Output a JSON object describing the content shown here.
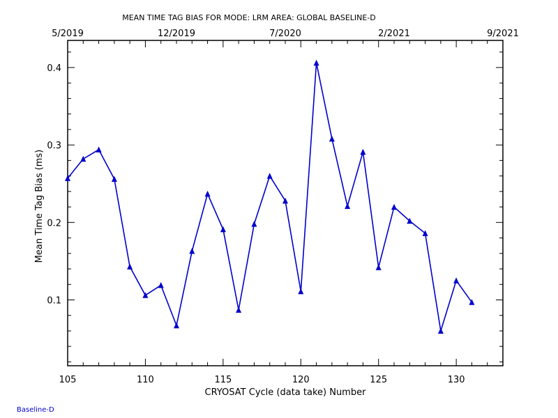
{
  "chart_data": {
    "type": "line",
    "title": "MEAN TIME TAG BIAS FOR MODE: LRM AREA: GLOBAL BASELINE-D",
    "xlabel": "CRYOSAT Cycle (data take) Number",
    "ylabel": "Mean Time Tag Bias (ms)",
    "xlim": [
      105,
      133
    ],
    "ylim": [
      0.015,
      0.435
    ],
    "x_ticks": [
      105,
      110,
      115,
      120,
      125,
      130
    ],
    "y_ticks": [
      0.1,
      0.2,
      0.3,
      0.4
    ],
    "top_axis_ticks": [
      {
        "x": 105,
        "label": "5/2019"
      },
      {
        "x": 112,
        "label": "12/2019"
      },
      {
        "x": 119,
        "label": "7/2020"
      },
      {
        "x": 126,
        "label": "2/2021"
      },
      {
        "x": 133,
        "label": "9/2021"
      }
    ],
    "series_color": "#0000cc",
    "marker": "triangle",
    "grid": false,
    "series": [
      {
        "x": [
          105,
          106,
          107,
          108,
          109,
          110,
          111,
          112,
          113,
          114,
          115,
          116,
          117,
          118,
          119,
          120,
          121,
          122,
          123,
          124,
          125,
          126,
          127,
          128,
          129,
          130,
          131
        ],
        "y": [
          0.257,
          0.282,
          0.294,
          0.256,
          0.143,
          0.106,
          0.119,
          0.067,
          0.163,
          0.237,
          0.191,
          0.087,
          0.198,
          0.26,
          0.228,
          0.111,
          0.406,
          0.308,
          0.221,
          0.291,
          0.142,
          0.22,
          0.202,
          0.186,
          0.06,
          0.125,
          0.097
        ]
      }
    ]
  },
  "footer": "Baseline-D"
}
